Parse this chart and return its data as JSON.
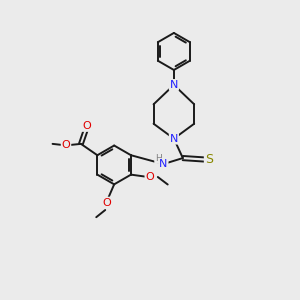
{
  "background_color": "#ebebeb",
  "bond_color": "#1a1a1a",
  "N_color": "#2020ff",
  "O_color": "#e00000",
  "S_color": "#888800",
  "H_color": "#808080",
  "figsize": [
    3.0,
    3.0
  ],
  "dpi": 100,
  "lw": 1.4,
  "fs": 8.0,
  "xlim": [
    0,
    10
  ],
  "ylim": [
    0,
    10
  ]
}
